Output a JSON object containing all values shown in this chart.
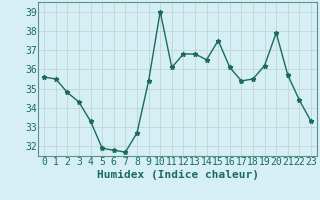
{
  "x": [
    0,
    1,
    2,
    3,
    4,
    5,
    6,
    7,
    8,
    9,
    10,
    11,
    12,
    13,
    14,
    15,
    16,
    17,
    18,
    19,
    20,
    21,
    22,
    23
  ],
  "y": [
    35.6,
    35.5,
    34.8,
    34.3,
    33.3,
    31.9,
    31.8,
    31.7,
    32.7,
    35.4,
    39.0,
    36.1,
    36.8,
    36.8,
    36.5,
    37.5,
    36.1,
    35.4,
    35.5,
    36.2,
    37.9,
    35.7,
    34.4,
    33.3
  ],
  "line_color": "#1a6b5a",
  "marker": "*",
  "marker_size": 3.5,
  "bg_color": "#d6eff5",
  "grid_color": "#c4d8d8",
  "xlabel": "Humidex (Indice chaleur)",
  "ylim": [
    31.5,
    39.5
  ],
  "yticks": [
    32,
    33,
    34,
    35,
    36,
    37,
    38,
    39
  ],
  "xticks": [
    0,
    1,
    2,
    3,
    4,
    5,
    6,
    7,
    8,
    9,
    10,
    11,
    12,
    13,
    14,
    15,
    16,
    17,
    18,
    19,
    20,
    21,
    22,
    23
  ],
  "xlim": [
    -0.5,
    23.5
  ],
  "xlabel_fontsize": 8,
  "tick_fontsize": 7,
  "line_width": 1.0,
  "spine_color": "#5a9090"
}
